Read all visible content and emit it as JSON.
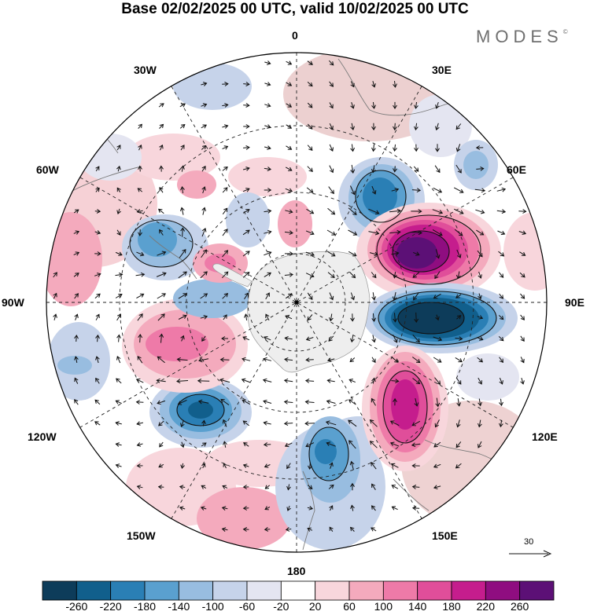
{
  "title": "Base 02/02/2025 00 UTC, valid 10/02/2025 00 UTC",
  "brand": {
    "name": "MODES",
    "mark": "©"
  },
  "longitude_labels": {
    "north": "0",
    "east30": "30E",
    "east60": "60E",
    "east90": "90E",
    "east120": "120E",
    "east150": "150E",
    "south": "180",
    "west150": "150W",
    "west120": "120W",
    "west90": "90W",
    "west60": "60W",
    "west30": "30W"
  },
  "projection": "polar stereographic, south pole",
  "colorbar": {
    "ticks": [
      "-260",
      "-220",
      "-180",
      "-140",
      "-100",
      "-60",
      "-20",
      "20",
      "60",
      "100",
      "140",
      "180",
      "220",
      "260"
    ],
    "colors": [
      "#0d3c5a",
      "#115f8c",
      "#2a7fb5",
      "#5aa0cf",
      "#98bde0",
      "#c6d3ea",
      "#e4e5f1",
      "#ffffff",
      "#f8d6dc",
      "#f4aabd",
      "#ee7aa8",
      "#e04e9a",
      "#c51d8d",
      "#8f0d80",
      "#5c1076"
    ]
  },
  "vector_reference": {
    "label": "30"
  },
  "anomaly_features": [
    {
      "sign": "negative",
      "level": -260,
      "region": "Indian Ocean near 85E"
    },
    {
      "sign": "positive",
      "level": 260,
      "region": "Indian Ocean near 60E"
    },
    {
      "sign": "positive",
      "level": 220,
      "region": "south of Australia near 125E"
    },
    {
      "sign": "negative",
      "level": -140,
      "region": "near 40E"
    },
    {
      "sign": "negative",
      "level": -220,
      "region": "Pacific near 120W"
    },
    {
      "sign": "positive",
      "level": 140,
      "region": "near 100W"
    },
    {
      "sign": "negative",
      "level": -140,
      "region": "near 170E"
    }
  ]
}
